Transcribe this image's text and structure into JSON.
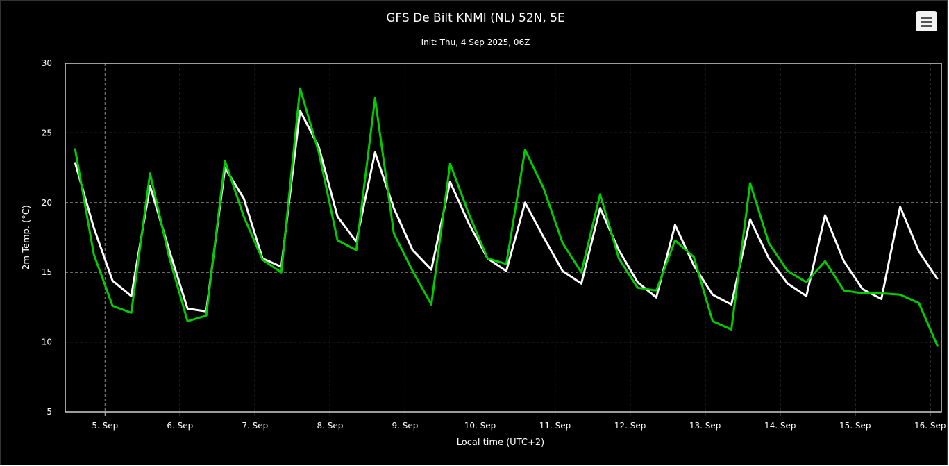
{
  "chart_data": {
    "type": "line",
    "title": "GFS De Bilt KNMI (NL) 52N, 5E",
    "subtitle": "Init: Thu, 4 Sep 2025, 06Z",
    "xlabel": "Local time (UTC+2)",
    "ylabel": "2m Temp. (°C)",
    "ylim": [
      5,
      30
    ],
    "yticks": [
      "5",
      "10",
      "15",
      "20",
      "25",
      "30"
    ],
    "xlim": [
      4.47,
      16.15
    ],
    "xticks": [
      {
        "x": 5,
        "label": "5. Sep"
      },
      {
        "x": 6,
        "label": "6. Sep"
      },
      {
        "x": 7,
        "label": "7. Sep"
      },
      {
        "x": 8,
        "label": "8. Sep"
      },
      {
        "x": 9,
        "label": "9. Sep"
      },
      {
        "x": 10,
        "label": "10. Sep"
      },
      {
        "x": 11,
        "label": "11. Sep"
      },
      {
        "x": 12,
        "label": "12. Sep"
      },
      {
        "x": 13,
        "label": "13. Sep"
      },
      {
        "x": 14,
        "label": "14. Sep"
      },
      {
        "x": 15,
        "label": "15. Sep"
      },
      {
        "x": 16,
        "label": "16. Sep"
      }
    ],
    "grid": true,
    "legend": "none",
    "series": [
      {
        "color": "#ffffff",
        "points": [
          [
            4.6,
            22.9
          ],
          [
            4.85,
            18.2
          ],
          [
            5.1,
            14.4
          ],
          [
            5.35,
            13.3
          ],
          [
            5.6,
            21.2
          ],
          [
            5.85,
            16.7
          ],
          [
            6.1,
            12.4
          ],
          [
            6.35,
            12.2
          ],
          [
            6.6,
            22.5
          ],
          [
            6.85,
            20.3
          ],
          [
            7.1,
            16.0
          ],
          [
            7.35,
            15.4
          ],
          [
            7.6,
            26.6
          ],
          [
            7.85,
            24.0
          ],
          [
            8.1,
            19.0
          ],
          [
            8.35,
            17.2
          ],
          [
            8.6,
            23.6
          ],
          [
            8.85,
            19.6
          ],
          [
            9.1,
            16.6
          ],
          [
            9.35,
            15.2
          ],
          [
            9.6,
            21.5
          ],
          [
            9.85,
            18.5
          ],
          [
            10.1,
            16.0
          ],
          [
            10.35,
            15.1
          ],
          [
            10.6,
            20.0
          ],
          [
            10.85,
            17.5
          ],
          [
            11.1,
            15.1
          ],
          [
            11.35,
            14.2
          ],
          [
            11.6,
            19.6
          ],
          [
            11.85,
            16.6
          ],
          [
            12.1,
            14.3
          ],
          [
            12.35,
            13.2
          ],
          [
            12.6,
            18.4
          ],
          [
            12.85,
            15.5
          ],
          [
            13.1,
            13.4
          ],
          [
            13.35,
            12.7
          ],
          [
            13.6,
            18.8
          ],
          [
            13.85,
            16.0
          ],
          [
            14.1,
            14.2
          ],
          [
            14.35,
            13.3
          ],
          [
            14.6,
            19.1
          ],
          [
            14.85,
            15.8
          ],
          [
            15.1,
            13.8
          ],
          [
            15.35,
            13.1
          ],
          [
            15.6,
            19.7
          ],
          [
            15.85,
            16.5
          ],
          [
            16.1,
            14.5
          ]
        ]
      },
      {
        "color": "#00cc00",
        "points": [
          [
            4.6,
            23.9
          ],
          [
            4.85,
            16.3
          ],
          [
            5.1,
            12.6
          ],
          [
            5.35,
            12.1
          ],
          [
            5.6,
            22.1
          ],
          [
            5.85,
            16.2
          ],
          [
            6.1,
            11.5
          ],
          [
            6.35,
            11.9
          ],
          [
            6.6,
            23.0
          ],
          [
            6.85,
            19.0
          ],
          [
            7.1,
            15.9
          ],
          [
            7.35,
            15.0
          ],
          [
            7.6,
            28.2
          ],
          [
            7.85,
            23.6
          ],
          [
            8.1,
            17.3
          ],
          [
            8.35,
            16.6
          ],
          [
            8.6,
            27.5
          ],
          [
            8.85,
            17.8
          ],
          [
            9.1,
            15.1
          ],
          [
            9.35,
            12.7
          ],
          [
            9.6,
            22.8
          ],
          [
            9.85,
            19.2
          ],
          [
            10.1,
            16.0
          ],
          [
            10.35,
            15.6
          ],
          [
            10.6,
            23.8
          ],
          [
            10.85,
            21.0
          ],
          [
            11.1,
            17.1
          ],
          [
            11.35,
            15.0
          ],
          [
            11.6,
            20.6
          ],
          [
            11.85,
            16.0
          ],
          [
            12.1,
            13.9
          ],
          [
            12.35,
            13.7
          ],
          [
            12.6,
            17.3
          ],
          [
            12.85,
            16.1
          ],
          [
            13.1,
            11.5
          ],
          [
            13.35,
            10.9
          ],
          [
            13.6,
            21.4
          ],
          [
            13.85,
            17.1
          ],
          [
            14.1,
            15.1
          ],
          [
            14.35,
            14.3
          ],
          [
            14.6,
            15.8
          ],
          [
            14.85,
            13.7
          ],
          [
            15.1,
            13.5
          ],
          [
            15.35,
            13.5
          ],
          [
            15.6,
            13.4
          ],
          [
            15.85,
            12.8
          ],
          [
            16.1,
            9.7
          ]
        ]
      }
    ]
  },
  "ui": {
    "menu_icon": "hamburger-menu-icon"
  }
}
